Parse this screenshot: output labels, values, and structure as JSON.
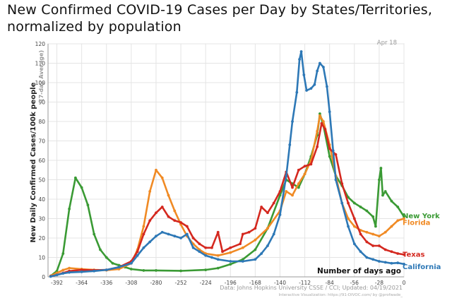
{
  "page": {
    "title_line1": "New Confirmed COVID-19 Cases per Day by States/Territories,",
    "title_line2": "normalized by population"
  },
  "chart_data": {
    "type": "line",
    "ylabel": "New Daily Confirmed Cases/100k people",
    "ylabel_sub": "(7-day Average)",
    "xlabel": "Number of days ago",
    "date_label": "Apr 18",
    "source": "Data: Johns Hopkins University CSSE / CCI; Updated: 04/19/2021",
    "source_sub": "Interactive Visualization: https://91-DIVOC.com/ by @profwade_",
    "xlim": [
      -402,
      0
    ],
    "ylim": [
      0,
      120
    ],
    "x_ticks": [
      -392,
      -364,
      -336,
      -308,
      -280,
      -252,
      -224,
      -196,
      -168,
      -140,
      -112,
      -84,
      -56,
      -28,
      0
    ],
    "y_ticks": [
      0,
      10,
      20,
      30,
      40,
      50,
      60,
      70,
      80,
      90,
      100,
      110,
      120
    ],
    "grid": true,
    "legend": "end-of-line labels",
    "series": [
      {
        "name": "New York",
        "color": "#3a9a34",
        "points": [
          [
            -399,
            0.5
          ],
          [
            -392,
            3
          ],
          [
            -385,
            12
          ],
          [
            -378,
            35
          ],
          [
            -371,
            51
          ],
          [
            -364,
            46
          ],
          [
            -357,
            37
          ],
          [
            -350,
            22
          ],
          [
            -343,
            14
          ],
          [
            -336,
            10
          ],
          [
            -329,
            7
          ],
          [
            -322,
            6
          ],
          [
            -315,
            5
          ],
          [
            -308,
            4
          ],
          [
            -294,
            3.3
          ],
          [
            -280,
            3.3
          ],
          [
            -252,
            3.1
          ],
          [
            -224,
            3.6
          ],
          [
            -210,
            4.5
          ],
          [
            -196,
            6.5
          ],
          [
            -182,
            9
          ],
          [
            -168,
            14
          ],
          [
            -154,
            25
          ],
          [
            -140,
            42
          ],
          [
            -133,
            50
          ],
          [
            -126,
            48
          ],
          [
            -119,
            46
          ],
          [
            -112,
            53
          ],
          [
            -105,
            62
          ],
          [
            -98,
            73
          ],
          [
            -95,
            84
          ],
          [
            -91,
            78
          ],
          [
            -84,
            62
          ],
          [
            -77,
            52
          ],
          [
            -70,
            47
          ],
          [
            -63,
            41
          ],
          [
            -56,
            38
          ],
          [
            -49,
            36
          ],
          [
            -42,
            34
          ],
          [
            -35,
            31
          ],
          [
            -32,
            26
          ],
          [
            -28,
            50
          ],
          [
            -26,
            56
          ],
          [
            -24,
            42
          ],
          [
            -21,
            44
          ],
          [
            -14,
            39
          ],
          [
            -7,
            36
          ],
          [
            0,
            31
          ]
        ]
      },
      {
        "name": "Florida",
        "color": "#f08a24",
        "points": [
          [
            -399,
            0.5
          ],
          [
            -392,
            2
          ],
          [
            -385,
            3.5
          ],
          [
            -378,
            4.5
          ],
          [
            -364,
            4
          ],
          [
            -350,
            3.6
          ],
          [
            -336,
            3.4
          ],
          [
            -322,
            4
          ],
          [
            -308,
            7
          ],
          [
            -301,
            14
          ],
          [
            -294,
            26
          ],
          [
            -287,
            44
          ],
          [
            -280,
            55
          ],
          [
            -273,
            51
          ],
          [
            -266,
            42
          ],
          [
            -259,
            34
          ],
          [
            -252,
            27
          ],
          [
            -245,
            21
          ],
          [
            -238,
            17
          ],
          [
            -231,
            14
          ],
          [
            -224,
            12
          ],
          [
            -210,
            11
          ],
          [
            -196,
            12.5
          ],
          [
            -182,
            15
          ],
          [
            -168,
            19
          ],
          [
            -154,
            25
          ],
          [
            -140,
            34
          ],
          [
            -133,
            44
          ],
          [
            -126,
            42
          ],
          [
            -119,
            48
          ],
          [
            -112,
            53
          ],
          [
            -105,
            60
          ],
          [
            -98,
            75
          ],
          [
            -95,
            83
          ],
          [
            -91,
            80
          ],
          [
            -84,
            68
          ],
          [
            -77,
            52
          ],
          [
            -70,
            38
          ],
          [
            -63,
            30
          ],
          [
            -56,
            26
          ],
          [
            -49,
            24
          ],
          [
            -42,
            23
          ],
          [
            -35,
            22
          ],
          [
            -28,
            21
          ],
          [
            -21,
            23
          ],
          [
            -14,
            26
          ],
          [
            -7,
            29
          ],
          [
            0,
            30
          ]
        ]
      },
      {
        "name": "Texas",
        "color": "#d4281f",
        "points": [
          [
            -399,
            0.3
          ],
          [
            -392,
            1
          ],
          [
            -385,
            2
          ],
          [
            -378,
            3
          ],
          [
            -364,
            3.6
          ],
          [
            -350,
            3.4
          ],
          [
            -336,
            3.6
          ],
          [
            -322,
            5
          ],
          [
            -308,
            8
          ],
          [
            -301,
            13
          ],
          [
            -294,
            22
          ],
          [
            -287,
            29
          ],
          [
            -280,
            33
          ],
          [
            -273,
            36
          ],
          [
            -266,
            31
          ],
          [
            -259,
            29
          ],
          [
            -252,
            28
          ],
          [
            -245,
            26
          ],
          [
            -238,
            20
          ],
          [
            -231,
            17
          ],
          [
            -224,
            15
          ],
          [
            -217,
            15
          ],
          [
            -210,
            23
          ],
          [
            -205,
            13
          ],
          [
            -196,
            15
          ],
          [
            -185,
            17
          ],
          [
            -182,
            22
          ],
          [
            -175,
            23
          ],
          [
            -168,
            25
          ],
          [
            -161,
            36
          ],
          [
            -154,
            33
          ],
          [
            -147,
            38
          ],
          [
            -140,
            44
          ],
          [
            -133,
            54
          ],
          [
            -126,
            46
          ],
          [
            -119,
            55
          ],
          [
            -112,
            57
          ],
          [
            -105,
            58
          ],
          [
            -98,
            67
          ],
          [
            -93,
            79
          ],
          [
            -89,
            76
          ],
          [
            -84,
            66
          ],
          [
            -77,
            63
          ],
          [
            -70,
            48
          ],
          [
            -63,
            38
          ],
          [
            -56,
            30
          ],
          [
            -49,
            22
          ],
          [
            -42,
            18
          ],
          [
            -35,
            16
          ],
          [
            -28,
            16
          ],
          [
            -21,
            14
          ],
          [
            -14,
            13
          ],
          [
            -7,
            12
          ],
          [
            0,
            11.5
          ]
        ]
      },
      {
        "name": "California",
        "color": "#2d78b6",
        "points": [
          [
            -399,
            0.2
          ],
          [
            -392,
            1
          ],
          [
            -385,
            1.8
          ],
          [
            -378,
            2.3
          ],
          [
            -364,
            2.6
          ],
          [
            -350,
            3
          ],
          [
            -336,
            3.6
          ],
          [
            -322,
            5
          ],
          [
            -308,
            7
          ],
          [
            -301,
            11
          ],
          [
            -294,
            15
          ],
          [
            -287,
            18
          ],
          [
            -280,
            21
          ],
          [
            -273,
            23
          ],
          [
            -266,
            22
          ],
          [
            -259,
            21
          ],
          [
            -252,
            20
          ],
          [
            -245,
            22
          ],
          [
            -238,
            15
          ],
          [
            -231,
            13
          ],
          [
            -224,
            11
          ],
          [
            -217,
            10
          ],
          [
            -210,
            9
          ],
          [
            -196,
            8
          ],
          [
            -182,
            8
          ],
          [
            -168,
            9
          ],
          [
            -161,
            12
          ],
          [
            -154,
            16
          ],
          [
            -147,
            22
          ],
          [
            -140,
            32
          ],
          [
            -133,
            52
          ],
          [
            -129,
            68
          ],
          [
            -126,
            80
          ],
          [
            -121,
            95
          ],
          [
            -118,
            112
          ],
          [
            -116,
            116
          ],
          [
            -113,
            104
          ],
          [
            -110,
            96
          ],
          [
            -105,
            97
          ],
          [
            -101,
            99
          ],
          [
            -98,
            106
          ],
          [
            -95,
            110
          ],
          [
            -91,
            108
          ],
          [
            -87,
            98
          ],
          [
            -84,
            85
          ],
          [
            -80,
            65
          ],
          [
            -77,
            50
          ],
          [
            -70,
            38
          ],
          [
            -63,
            26
          ],
          [
            -56,
            17
          ],
          [
            -49,
            13
          ],
          [
            -42,
            10
          ],
          [
            -35,
            9
          ],
          [
            -28,
            8
          ],
          [
            -21,
            7.5
          ],
          [
            -14,
            7
          ],
          [
            -7,
            7.2
          ],
          [
            0,
            6.6
          ]
        ]
      }
    ]
  }
}
